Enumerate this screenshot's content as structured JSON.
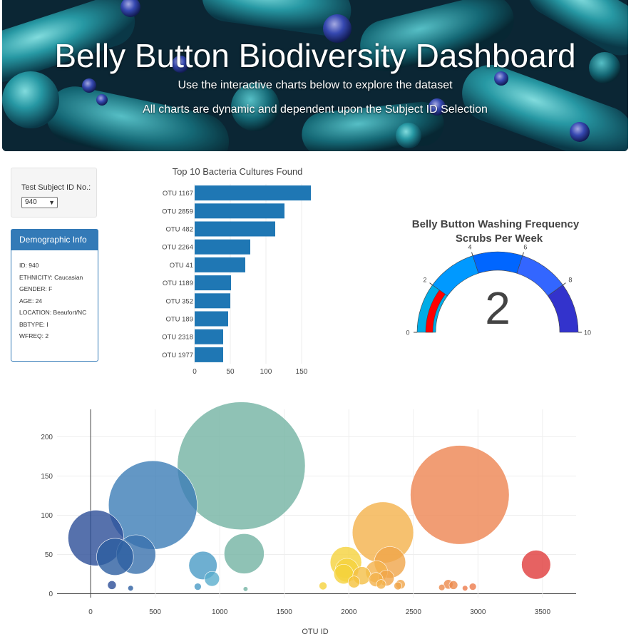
{
  "header": {
    "title": "Belly Button Biodiversity Dashboard",
    "subtitle1": "Use the interactive charts below to explore the dataset",
    "subtitle2": "All charts are dynamic and dependent upon the Subject ID Selection"
  },
  "selector": {
    "label": "Test Subject ID No.:",
    "value": "940"
  },
  "demographic": {
    "title": "Demographic Info",
    "items": [
      "ID: 940",
      "ETHNICITY: Caucasian",
      "GENDER: F",
      "AGE: 24",
      "LOCATION: Beaufort/NC",
      "BBTYPE: I",
      "WFREQ: 2"
    ]
  },
  "chart_data": [
    {
      "type": "bar",
      "orientation": "horizontal",
      "title": "Top 10 Bacteria Cultures Found",
      "categories": [
        "OTU 1167",
        "OTU 2859",
        "OTU 482",
        "OTU 2264",
        "OTU 41",
        "OTU 1189",
        "OTU 352",
        "OTU 189",
        "OTU 2318",
        "OTU 1977"
      ],
      "values": [
        163,
        126,
        113,
        78,
        71,
        51,
        50,
        47,
        40,
        40
      ],
      "xticks": [
        0,
        50,
        100,
        150
      ],
      "xlim": [
        0,
        170
      ],
      "color": "#1f77b4"
    },
    {
      "type": "gauge",
      "title_line1": "Belly Button Washing Frequency",
      "title_line2": "Scrubs Per Week",
      "value": 2,
      "range": [
        0,
        10
      ],
      "ticks": [
        0,
        2,
        4,
        6,
        8,
        10
      ],
      "steps": [
        {
          "range": [
            0,
            2
          ],
          "color": "#00ace6"
        },
        {
          "range": [
            2,
            4
          ],
          "color": "#0099ff"
        },
        {
          "range": [
            4,
            6
          ],
          "color": "#0066ff"
        },
        {
          "range": [
            6,
            8
          ],
          "color": "#3366ff"
        },
        {
          "range": [
            8,
            10
          ],
          "color": "#3333cc"
        }
      ],
      "bar_color": "#ff0000"
    },
    {
      "type": "scatter",
      "style": "bubble",
      "xlabel": "OTU ID",
      "xlim": [
        -260,
        3760
      ],
      "ylim": [
        -5,
        235
      ],
      "xticks": [
        0,
        500,
        1000,
        1500,
        2000,
        2500,
        3000,
        3500
      ],
      "yticks": [
        0,
        50,
        100,
        150,
        200
      ],
      "grid": true,
      "points": [
        {
          "x": 41,
          "y": 71,
          "color": "#2c4e97"
        },
        {
          "x": 189,
          "y": 47,
          "color": "#2c5ea0"
        },
        {
          "x": 352,
          "y": 50,
          "color": "#3871ac"
        },
        {
          "x": 482,
          "y": 113,
          "color": "#3c7db6"
        },
        {
          "x": 165,
          "y": 11,
          "color": "#2c4e97"
        },
        {
          "x": 310,
          "y": 7,
          "color": "#2c5ea0"
        },
        {
          "x": 870,
          "y": 36,
          "color": "#4a9bc6"
        },
        {
          "x": 940,
          "y": 19,
          "color": "#5aaecd"
        },
        {
          "x": 830,
          "y": 9,
          "color": "#4a9bc6"
        },
        {
          "x": 1167,
          "y": 163,
          "color": "#73b3a2"
        },
        {
          "x": 1189,
          "y": 51,
          "color": "#73b3a2"
        },
        {
          "x": 1200,
          "y": 6,
          "color": "#73b3a2"
        },
        {
          "x": 1977,
          "y": 40,
          "color": "#f5d23c"
        },
        {
          "x": 1985,
          "y": 30,
          "color": "#f5d23c"
        },
        {
          "x": 1960,
          "y": 25,
          "color": "#f5d23c"
        },
        {
          "x": 1800,
          "y": 10,
          "color": "#f5d23c"
        },
        {
          "x": 2040,
          "y": 15,
          "color": "#f5c23c"
        },
        {
          "x": 2100,
          "y": 23,
          "color": "#f4bf47"
        },
        {
          "x": 2264,
          "y": 78,
          "color": "#f4b24b"
        },
        {
          "x": 2215,
          "y": 28,
          "color": "#f4b24b"
        },
        {
          "x": 2318,
          "y": 40,
          "color": "#f0a54a"
        },
        {
          "x": 2290,
          "y": 20,
          "color": "#f0a54a"
        },
        {
          "x": 2210,
          "y": 18,
          "color": "#f4b24b"
        },
        {
          "x": 2250,
          "y": 12,
          "color": "#f4b24b"
        },
        {
          "x": 2400,
          "y": 12,
          "color": "#f0a54a"
        },
        {
          "x": 2380,
          "y": 10,
          "color": "#f0a54a"
        },
        {
          "x": 2720,
          "y": 8,
          "color": "#ec8a4b"
        },
        {
          "x": 2770,
          "y": 12,
          "color": "#ec8a4b"
        },
        {
          "x": 2810,
          "y": 11,
          "color": "#ec8a4b"
        },
        {
          "x": 2859,
          "y": 126,
          "color": "#ed8551"
        },
        {
          "x": 2960,
          "y": 9,
          "color": "#ec7a4b"
        },
        {
          "x": 2900,
          "y": 7,
          "color": "#ec7a4b"
        },
        {
          "x": 3450,
          "y": 37,
          "color": "#e03b3b"
        }
      ]
    }
  ]
}
